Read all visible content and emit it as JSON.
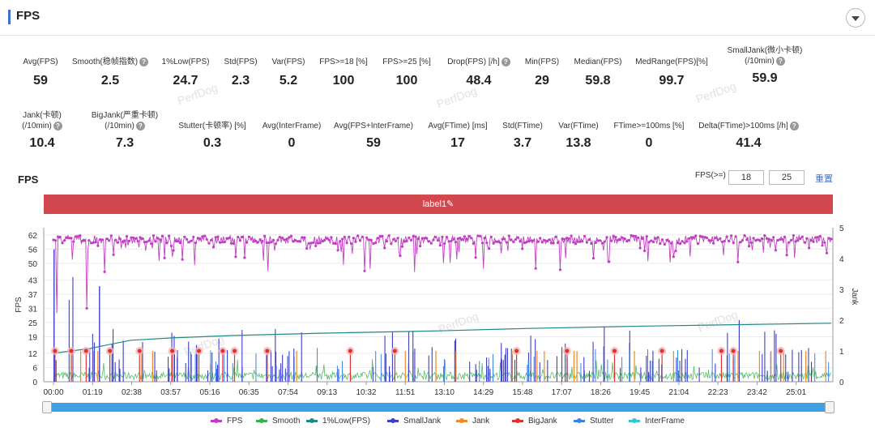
{
  "header": {
    "title": "FPS"
  },
  "metrics_row1": [
    {
      "label": "Avg(FPS)",
      "value": "59",
      "help": false
    },
    {
      "label": "Smooth(稳帧指数)",
      "value": "2.5",
      "help": true
    },
    {
      "label": "1%Low(FPS)",
      "value": "24.7",
      "help": false
    },
    {
      "label": "Std(FPS)",
      "value": "2.3",
      "help": false
    },
    {
      "label": "Var(FPS)",
      "value": "5.2",
      "help": false
    },
    {
      "label": "FPS>=18 [%]",
      "value": "100",
      "help": false
    },
    {
      "label": "FPS>=25 [%]",
      "value": "100",
      "help": false
    },
    {
      "label": "Drop(FPS) [/h]",
      "value": "48.4",
      "help": true
    },
    {
      "label": "Min(FPS)",
      "value": "29",
      "help": false
    },
    {
      "label": "Median(FPS)",
      "value": "59.8",
      "help": false
    },
    {
      "label": "MedRange(FPS)[%]",
      "value": "99.7",
      "help": false
    },
    {
      "label": "SmallJank(微小卡顿)",
      "label2": "(/10min)",
      "value": "59.9",
      "help": true
    }
  ],
  "metrics_row2": [
    {
      "label": "Jank(卡顿)",
      "label2": "(/10min)",
      "value": "10.4",
      "help": true
    },
    {
      "label": "BigJank(严重卡顿)",
      "label2": "(/10min)",
      "value": "7.3",
      "help": true
    },
    {
      "label": "Stutter(卡顿率) [%]",
      "value": "0.3",
      "help": false
    },
    {
      "label": "Avg(InterFrame)",
      "value": "0",
      "help": false
    },
    {
      "label": "Avg(FPS+InterFrame)",
      "value": "59",
      "help": false
    },
    {
      "label": "Avg(FTime) [ms]",
      "value": "17",
      "help": false
    },
    {
      "label": "Std(FTime)",
      "value": "3.7",
      "help": false
    },
    {
      "label": "Var(FTime)",
      "value": "13.8",
      "help": false
    },
    {
      "label": "FTime>=100ms [%]",
      "value": "0",
      "help": false
    },
    {
      "label": "Delta(FTime)>100ms [/h]",
      "value": "41.4",
      "help": true
    }
  ],
  "watermark": "PerfDog",
  "chart_panel": {
    "title": "FPS",
    "threshold_label": "FPS(>=)",
    "threshold_1": "18",
    "threshold_2": "25",
    "reset_label": "重置",
    "label_bar": "label1✎"
  },
  "chart_data": {
    "type": "line",
    "ylabel_left": "FPS",
    "ylabel_right": "Jank",
    "yticks_left": [
      0,
      6,
      12,
      19,
      25,
      31,
      37,
      43,
      50,
      56,
      62
    ],
    "ylim_left": [
      0,
      65
    ],
    "yticks_right": [
      0,
      1,
      2,
      3,
      4,
      5
    ],
    "ylim_right": [
      0,
      5
    ],
    "xticks": [
      "00:00",
      "01:19",
      "02:38",
      "03:57",
      "05:16",
      "06:35",
      "07:54",
      "09:13",
      "10:32",
      "11:51",
      "13:10",
      "14:29",
      "15:48",
      "17:07",
      "18:26",
      "19:45",
      "21:04",
      "22:23",
      "23:42",
      "25:01"
    ],
    "duration_minutes": 26.2,
    "series": [
      {
        "name": "FPS",
        "color": "#c13ec4",
        "axis": "left",
        "typical": 59.8,
        "min": 29
      },
      {
        "name": "Smooth",
        "color": "#37b24d",
        "axis": "left",
        "typical": 2.5
      },
      {
        "name": "1%Low(FPS)",
        "color": "#1f8a85",
        "axis": "left",
        "points": [
          [
            0,
            12
          ],
          [
            1.2,
            14
          ],
          [
            2.6,
            17.5
          ],
          [
            4,
            18.5
          ],
          [
            6,
            19.5
          ],
          [
            9,
            20.5
          ],
          [
            13,
            21.5
          ],
          [
            16,
            22.5
          ],
          [
            20,
            23.5
          ],
          [
            26.2,
            24.7
          ]
        ]
      },
      {
        "name": "SmallJank",
        "color": "#3d3fcf",
        "axis": "right"
      },
      {
        "name": "Jank",
        "color": "#f08a24",
        "axis": "right"
      },
      {
        "name": "BigJank",
        "color": "#e03131",
        "axis": "right",
        "events_minutes": [
          0.05,
          0.6,
          1.1,
          1.9,
          2.9,
          4.0,
          4.9,
          5.7,
          6.1,
          7.2,
          10.0,
          11.5,
          15.6,
          17.3,
          18.9,
          20.5,
          22.5,
          22.9,
          24.5
        ]
      },
      {
        "name": "Stutter",
        "color": "#3b82e8",
        "axis": "right"
      },
      {
        "name": "InterFrame",
        "color": "#3cc3d3",
        "axis": "right"
      }
    ]
  }
}
